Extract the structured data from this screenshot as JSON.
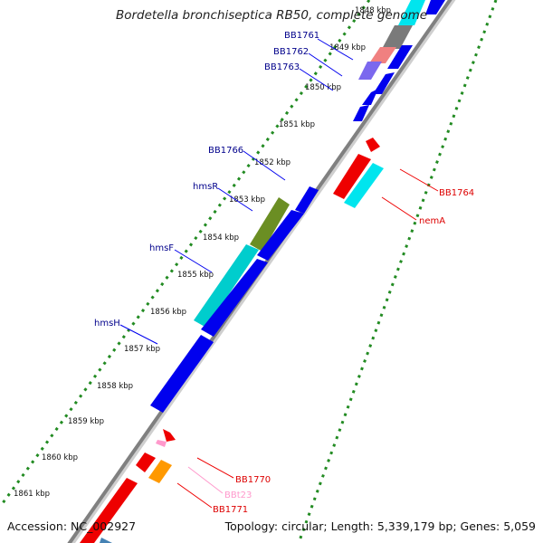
{
  "title": "Bordetella bronchiseptica RB50, complete genome",
  "footer": {
    "accession": "Accession: NC_002927",
    "topology": "Topology: circular; Length: 5,339,179 bp; Genes: 5,059"
  },
  "colors": {
    "plus_strand": "#0000ee",
    "minus_strand": "#ee0000",
    "label_plus": "#00008b",
    "label_minus": "#dd0000",
    "trna": "#ff99cc",
    "tick_dots": "#228b22",
    "backbone": "#808080"
  },
  "tick_labels": [
    "1848 kbp",
    "1849 kbp",
    "1850 kbp",
    "1851 kbp",
    "1852 kbp",
    "1853 kbp",
    "1854 kbp",
    "1855 kbp",
    "1856 kbp",
    "1857 kbp",
    "1858 kbp",
    "1859 kbp",
    "1860 kbp",
    "1861 kbp"
  ],
  "gene_labels": {
    "BB1761": "BB1761",
    "BB1762": "BB1762",
    "BB1763": "BB1763",
    "BB1766": "BB1766",
    "hmsR": "hmsR",
    "hmsF": "hmsF",
    "hmsH": "hmsH",
    "BB1764": "BB1764",
    "nemA": "nemA",
    "BB1770": "BB1770",
    "BBt23": "BBt23",
    "BB1771": "BB1771"
  }
}
